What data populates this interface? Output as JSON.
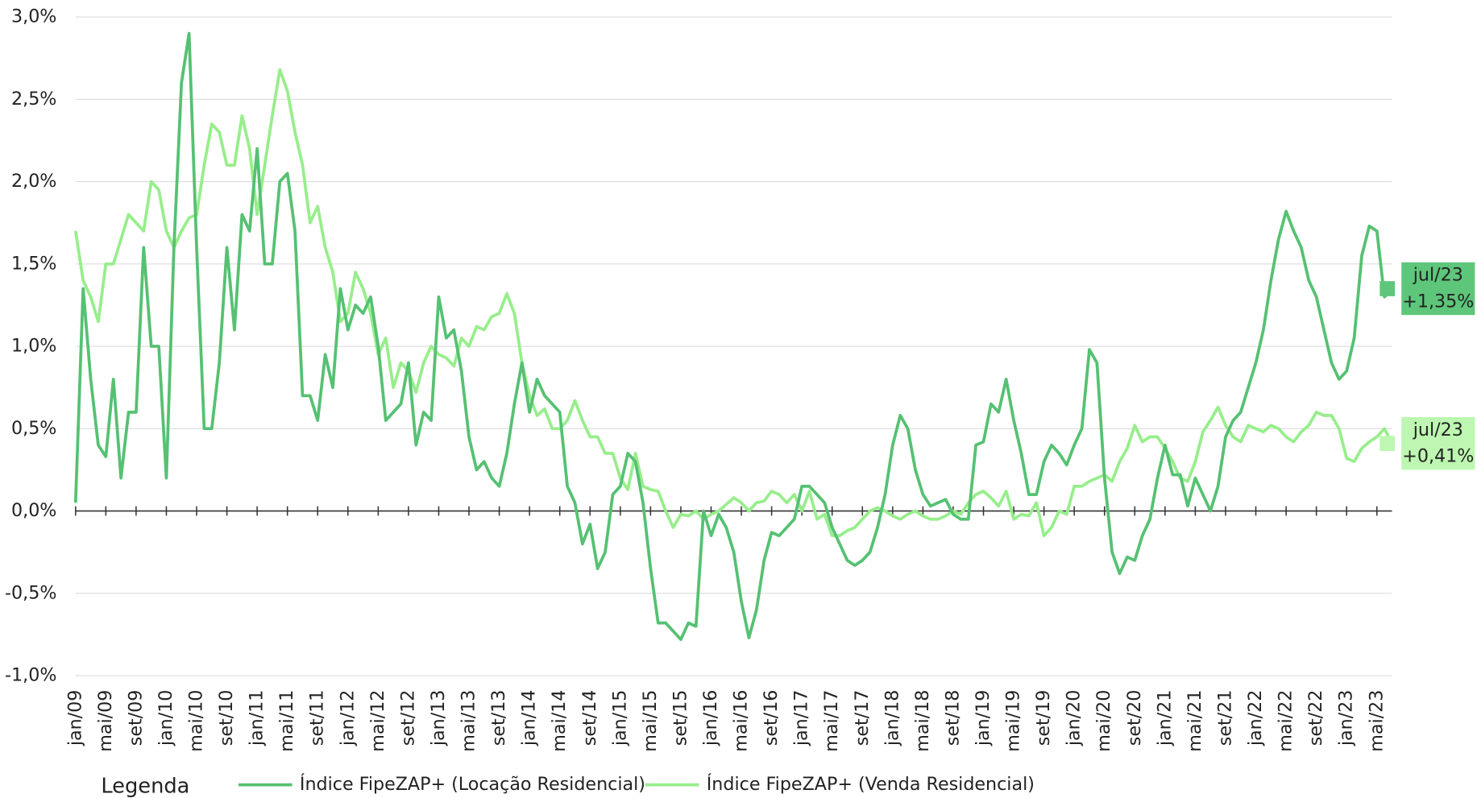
{
  "chart_data": {
    "type": "line",
    "legend_title": "Legenda",
    "categories": [
      "jan/09",
      null,
      null,
      null,
      "mai/09",
      null,
      null,
      null,
      "set/09",
      null,
      null,
      null,
      "jan/10",
      null,
      null,
      null,
      "mai/10",
      null,
      null,
      null,
      "set/10",
      null,
      null,
      null,
      "jan/11",
      null,
      null,
      null,
      "mai/11",
      null,
      null,
      null,
      "set/11",
      null,
      null,
      null,
      "jan/12",
      null,
      null,
      null,
      "mai/12",
      null,
      null,
      null,
      "set/12",
      null,
      null,
      null,
      "jan/13",
      null,
      null,
      null,
      "mai/13",
      null,
      null,
      null,
      "set/13",
      null,
      null,
      null,
      "jan/14",
      null,
      null,
      null,
      "mai/14",
      null,
      null,
      null,
      "set/14",
      null,
      null,
      null,
      "jan/15",
      null,
      null,
      null,
      "mai/15",
      null,
      null,
      null,
      "set/15",
      null,
      null,
      null,
      "jan/16",
      null,
      null,
      null,
      "mai/16",
      null,
      null,
      null,
      "set/16",
      null,
      null,
      null,
      "jan/17",
      null,
      null,
      null,
      "mai/17",
      null,
      null,
      null,
      "set/17",
      null,
      null,
      null,
      "jan/18",
      null,
      null,
      null,
      "mai/18",
      null,
      null,
      null,
      "set/18",
      null,
      null,
      null,
      "jan/19",
      null,
      null,
      null,
      "mai/19",
      null,
      null,
      null,
      "set/19",
      null,
      null,
      null,
      "jan/20",
      null,
      null,
      null,
      "mai/20",
      null,
      null,
      null,
      "set/20",
      null,
      null,
      null,
      "jan/21",
      null,
      null,
      null,
      "mai/21",
      null,
      null,
      null,
      "set/21",
      null,
      null,
      null,
      "jan/22",
      null,
      null,
      null,
      "mai/22",
      null,
      null,
      null,
      "set/22",
      null,
      null,
      null,
      "jan/23",
      null,
      null,
      null,
      "mai/23",
      null,
      "jul/23"
    ],
    "series": [
      {
        "name": "Índice FipeZAP+ (Locação Residencial)",
        "color": "#55c172",
        "label_bg": "#5ec67a",
        "values": [
          0.05,
          1.35,
          0.8,
          0.4,
          0.33,
          0.8,
          0.2,
          0.6,
          0.6,
          1.6,
          1.0,
          1.0,
          0.2,
          1.6,
          2.6,
          2.9,
          1.6,
          0.5,
          0.5,
          0.9,
          1.6,
          1.1,
          1.8,
          1.7,
          2.2,
          1.5,
          1.5,
          2.0,
          2.05,
          1.7,
          0.7,
          0.7,
          0.55,
          0.95,
          0.75,
          1.35,
          1.1,
          1.25,
          1.2,
          1.3,
          1.0,
          0.55,
          0.6,
          0.65,
          0.9,
          0.4,
          0.6,
          0.55,
          1.3,
          1.05,
          1.1,
          0.85,
          0.45,
          0.25,
          0.3,
          0.2,
          0.15,
          0.35,
          0.65,
          0.9,
          0.6,
          0.8,
          0.7,
          0.65,
          0.6,
          0.15,
          0.05,
          -0.2,
          -0.08,
          -0.35,
          -0.25,
          0.1,
          0.15,
          0.35,
          0.3,
          0.05,
          -0.35,
          -0.68,
          -0.68,
          -0.73,
          -0.78,
          -0.68,
          -0.7,
          0.0,
          -0.15,
          -0.02,
          -0.1,
          -0.25,
          -0.55,
          -0.77,
          -0.6,
          -0.3,
          -0.13,
          -0.15,
          -0.1,
          -0.05,
          0.15,
          0.15,
          0.1,
          0.05,
          -0.1,
          -0.2,
          -0.3,
          -0.33,
          -0.3,
          -0.25,
          -0.1,
          0.1,
          0.4,
          0.58,
          0.5,
          0.25,
          0.1,
          0.03,
          0.05,
          0.07,
          -0.02,
          -0.05,
          -0.05,
          0.4,
          0.42,
          0.65,
          0.6,
          0.8,
          0.55,
          0.35,
          0.1,
          0.1,
          0.3,
          0.4,
          0.35,
          0.28,
          0.4,
          0.5,
          0.98,
          0.9,
          0.2,
          -0.25,
          -0.38,
          -0.28,
          -0.3,
          -0.15,
          -0.05,
          0.2,
          0.4,
          0.22,
          0.22,
          0.03,
          0.2,
          0.1,
          0.0,
          0.15,
          0.45,
          0.55,
          0.6,
          0.75,
          0.9,
          1.1,
          1.4,
          1.65,
          1.82,
          1.7,
          1.6,
          1.4,
          1.3,
          1.1,
          0.9,
          0.8,
          0.85,
          1.05,
          1.55,
          1.73,
          1.7,
          1.3,
          1.35
        ],
        "value_labels": [
          null,
          null,
          null,
          null,
          null,
          null,
          null,
          null,
          null,
          null,
          null,
          null,
          null,
          null,
          null,
          null,
          null,
          null,
          null,
          null,
          null,
          null,
          null,
          null,
          null,
          null,
          null,
          null,
          null,
          null,
          null,
          null,
          null,
          null,
          null,
          null,
          null,
          null,
          null,
          null,
          null,
          null,
          null,
          null,
          null,
          null,
          null,
          null,
          null,
          null,
          null,
          null,
          null,
          null,
          null,
          null,
          null,
          null,
          null,
          null,
          null,
          null,
          null,
          null,
          null,
          null,
          null,
          null,
          null,
          null,
          null,
          null,
          null,
          null,
          null,
          null,
          null,
          null,
          null,
          null,
          null,
          null,
          null,
          null,
          null,
          null,
          null,
          null,
          null,
          null,
          null,
          null,
          null,
          null,
          null,
          null,
          null,
          null,
          null,
          null,
          null,
          null,
          null,
          null,
          null,
          null,
          null,
          null,
          null,
          null,
          null,
          null,
          null,
          null,
          null,
          null,
          null,
          null,
          null,
          null,
          null,
          null,
          null,
          null,
          null,
          null,
          null,
          null,
          null,
          null,
          null,
          null,
          null,
          null,
          null,
          null,
          null,
          null,
          null,
          null,
          null,
          null,
          null,
          null,
          null,
          null,
          null,
          null,
          null,
          null,
          null,
          null,
          null,
          null,
          null,
          null,
          null,
          null,
          null,
          null,
          null,
          null,
          null,
          null,
          null,
          null,
          null,
          null,
          null,
          null,
          null,
          null,
          null,
          null,
          "+1,35%"
        ]
      },
      {
        "name": "Índice FipeZAP+ (Venda Residencial)",
        "color": "#97ee8b",
        "label_bg": "#bdf7b1",
        "values": [
          1.7,
          1.4,
          1.3,
          1.15,
          1.5,
          1.5,
          1.65,
          1.8,
          1.75,
          1.7,
          2.0,
          1.95,
          1.7,
          1.6,
          1.7,
          1.78,
          1.8,
          2.1,
          2.35,
          2.3,
          2.1,
          2.1,
          2.4,
          2.2,
          1.8,
          2.1,
          2.4,
          2.68,
          2.55,
          2.3,
          2.1,
          1.75,
          1.85,
          1.6,
          1.45,
          1.15,
          1.2,
          1.45,
          1.35,
          1.2,
          0.95,
          1.05,
          0.75,
          0.9,
          0.85,
          0.72,
          0.9,
          1.0,
          0.95,
          0.93,
          0.88,
          1.05,
          1.0,
          1.12,
          1.1,
          1.18,
          1.2,
          1.32,
          1.2,
          0.9,
          0.7,
          0.58,
          0.62,
          0.5,
          0.5,
          0.55,
          0.67,
          0.55,
          0.45,
          0.45,
          0.35,
          0.35,
          0.2,
          0.13,
          0.35,
          0.15,
          0.13,
          0.12,
          0.0,
          -0.1,
          -0.02,
          -0.03,
          0.0,
          -0.05,
          -0.02,
          0.0,
          0.04,
          0.08,
          0.05,
          0.0,
          0.05,
          0.06,
          0.12,
          0.1,
          0.05,
          0.1,
          0.0,
          0.12,
          -0.05,
          -0.02,
          -0.15,
          -0.15,
          -0.12,
          -0.1,
          -0.05,
          0.0,
          0.02,
          0.0,
          -0.03,
          -0.05,
          -0.02,
          0.0,
          -0.03,
          -0.05,
          -0.05,
          -0.03,
          0.0,
          -0.02,
          0.05,
          0.1,
          0.12,
          0.08,
          0.03,
          0.12,
          -0.05,
          -0.02,
          -0.03,
          0.05,
          -0.15,
          -0.1,
          0.0,
          -0.02,
          0.15,
          0.15,
          0.18,
          0.2,
          0.22,
          0.18,
          0.3,
          0.38,
          0.52,
          0.42,
          0.45,
          0.45,
          0.38,
          0.3,
          0.2,
          0.18,
          0.3,
          0.48,
          0.55,
          0.63,
          0.52,
          0.45,
          0.42,
          0.52,
          0.5,
          0.48,
          0.52,
          0.5,
          0.45,
          0.42,
          0.48,
          0.52,
          0.6,
          0.58,
          0.58,
          0.5,
          0.32,
          0.3,
          0.38,
          0.42,
          0.45,
          0.5,
          0.41
        ],
        "value_labels": [
          null,
          null,
          null,
          null,
          null,
          null,
          null,
          null,
          null,
          null,
          null,
          null,
          null,
          null,
          null,
          null,
          null,
          null,
          null,
          null,
          null,
          null,
          null,
          null,
          null,
          null,
          null,
          null,
          null,
          null,
          null,
          null,
          null,
          null,
          null,
          null,
          null,
          null,
          null,
          null,
          null,
          null,
          null,
          null,
          null,
          null,
          null,
          null,
          null,
          null,
          null,
          null,
          null,
          null,
          null,
          null,
          null,
          null,
          null,
          null,
          null,
          null,
          null,
          null,
          null,
          null,
          null,
          null,
          null,
          null,
          null,
          null,
          null,
          null,
          null,
          null,
          null,
          null,
          null,
          null,
          null,
          null,
          null,
          null,
          null,
          null,
          null,
          null,
          null,
          null,
          null,
          null,
          null,
          null,
          null,
          null,
          null,
          null,
          null,
          null,
          null,
          null,
          null,
          null,
          null,
          null,
          null,
          null,
          null,
          null,
          null,
          null,
          null,
          null,
          null,
          null,
          null,
          null,
          null,
          null,
          null,
          null,
          null,
          null,
          null,
          null,
          null,
          null,
          null,
          null,
          null,
          null,
          null,
          null,
          null,
          null,
          null,
          null,
          null,
          null,
          null,
          null,
          null,
          null,
          null,
          null,
          null,
          null,
          null,
          null,
          null,
          null,
          null,
          null,
          null,
          null,
          null,
          null,
          null,
          null,
          null,
          null,
          null,
          null,
          null,
          null,
          null,
          null,
          null,
          null,
          null,
          null,
          null,
          null,
          "+0,41%"
        ]
      }
    ],
    "ylim": [
      -1.0,
      3.0
    ],
    "yticks": [
      {
        "value": -1.0,
        "label": "-1,0%"
      },
      {
        "value": -0.5,
        "label": "-0,5%"
      },
      {
        "value": 0,
        "label": "0,0%"
      },
      {
        "value": 0.5,
        "label": "0,5%"
      },
      {
        "value": 1.0,
        "label": "1,0%"
      },
      {
        "value": 1.5,
        "label": "1,5%"
      },
      {
        "value": 2.0,
        "label": "2,0%"
      },
      {
        "value": 2.5,
        "label": "2,5%"
      },
      {
        "value": 3.0,
        "label": "3,0%"
      }
    ],
    "grid": true
  }
}
